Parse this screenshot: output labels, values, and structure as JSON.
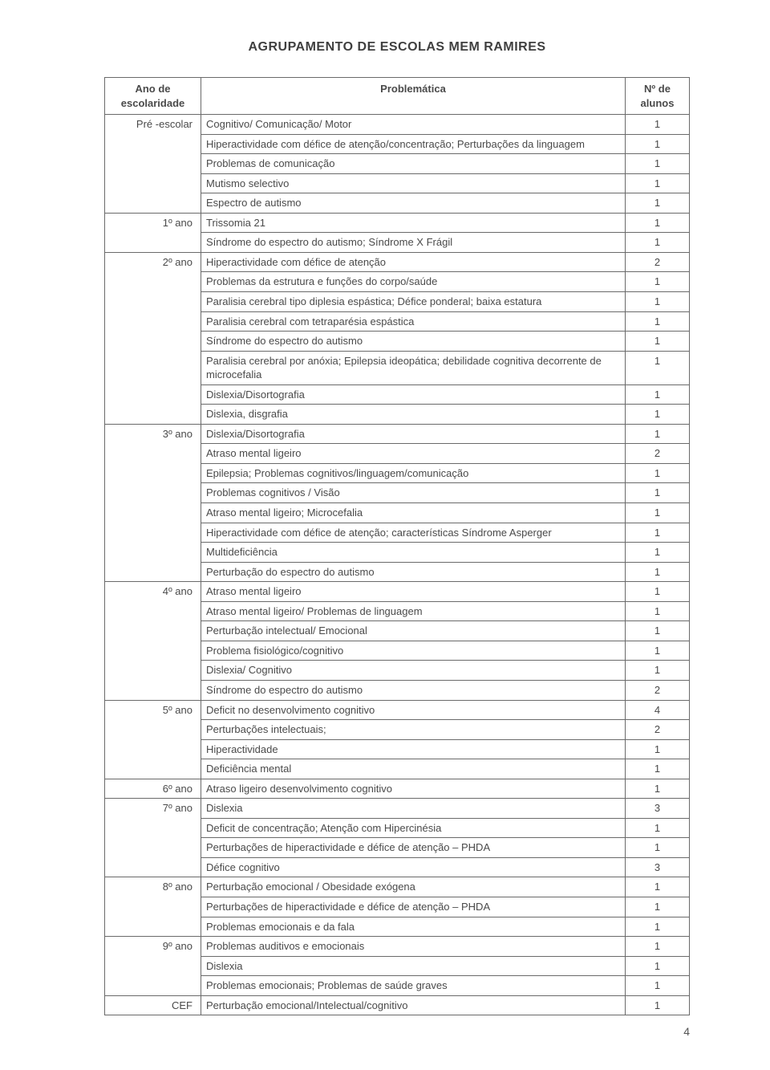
{
  "title": "AGRUPAMENTO DE ESCOLAS MEM RAMIRES",
  "columns": {
    "year": "Ano de escolaridade",
    "problem": "Problemática",
    "count": "Nº de alunos"
  },
  "groups": [
    {
      "year": "Pré -escolar",
      "rows": [
        {
          "problem": "Cognitivo/ Comunicação/ Motor",
          "count": "1"
        },
        {
          "problem": "Hiperactividade com défice de atenção/concentração; Perturbações da linguagem",
          "count": "1"
        },
        {
          "problem": "Problemas de comunicação",
          "count": "1"
        },
        {
          "problem": "Mutismo selectivo",
          "count": "1"
        },
        {
          "problem": "Espectro de autismo",
          "count": "1"
        }
      ]
    },
    {
      "year": "1º ano",
      "rows": [
        {
          "problem": "Trissomia 21",
          "count": "1"
        },
        {
          "problem": "Síndrome do espectro do autismo; Síndrome X Frágil",
          "count": "1"
        }
      ]
    },
    {
      "year": "2º ano",
      "rows": [
        {
          "problem": "Hiperactividade com défice de atenção",
          "count": "2"
        },
        {
          "problem": "Problemas da estrutura e funções do corpo/saúde",
          "count": "1"
        },
        {
          "problem": "Paralisia cerebral tipo diplesia espástica; Défice ponderal; baixa estatura",
          "count": "1"
        },
        {
          "problem": "Paralisia cerebral com tetraparésia espástica",
          "count": "1"
        },
        {
          "problem": "Síndrome do espectro do autismo",
          "count": "1"
        },
        {
          "problem": "Paralisia cerebral por anóxia; Epilepsia ideopática; debilidade cognitiva decorrente de microcefalia",
          "count": "1"
        },
        {
          "problem": "Dislexia/Disortografia",
          "count": "1"
        },
        {
          "problem": "Dislexia, disgrafia",
          "count": "1"
        }
      ]
    },
    {
      "year": "3º ano",
      "rows": [
        {
          "problem": "Dislexia/Disortografia",
          "count": "1"
        },
        {
          "problem": "Atraso mental ligeiro",
          "count": "2"
        },
        {
          "problem": "Epilepsia; Problemas cognitivos/linguagem/comunicação",
          "count": "1"
        },
        {
          "problem": "Problemas cognitivos / Visão",
          "count": "1"
        },
        {
          "problem": "Atraso mental ligeiro; Microcefalia",
          "count": "1"
        },
        {
          "problem": "Hiperactividade com défice de atenção; características Síndrome Asperger",
          "count": "1"
        },
        {
          "problem": "Multideficiência",
          "count": "1"
        },
        {
          "problem": "Perturbação do espectro do autismo",
          "count": "1"
        }
      ]
    },
    {
      "year": "4º ano",
      "rows": [
        {
          "problem": "Atraso mental ligeiro",
          "count": "1"
        },
        {
          "problem": "Atraso mental ligeiro/ Problemas de linguagem",
          "count": "1"
        },
        {
          "problem": "Perturbação intelectual/ Emocional",
          "count": "1"
        },
        {
          "problem": "Problema fisiológico/cognitivo",
          "count": "1"
        },
        {
          "problem": "Dislexia/ Cognitivo",
          "count": "1"
        },
        {
          "problem": "Síndrome do espectro do autismo",
          "count": "2"
        }
      ]
    },
    {
      "year": "5º ano",
      "rows": [
        {
          "problem": "Deficit no desenvolvimento cognitivo",
          "count": "4"
        },
        {
          "problem": "Perturbações intelectuais;",
          "count": "2"
        },
        {
          "problem": "Hiperactividade",
          "count": "1"
        },
        {
          "problem": "Deficiência mental",
          "count": "1"
        }
      ]
    },
    {
      "year": "6º ano",
      "rows": [
        {
          "problem": "Atraso ligeiro desenvolvimento cognitivo",
          "count": "1"
        }
      ]
    },
    {
      "year": "7º ano",
      "rows": [
        {
          "problem": "Dislexia",
          "count": "3"
        },
        {
          "problem": "Deficit de concentração; Atenção com Hipercinésia",
          "count": "1"
        },
        {
          "problem": "Perturbações de hiperactividade e défice de atenção – PHDA",
          "count": "1"
        },
        {
          "problem": "Défice cognitivo",
          "count": "3"
        }
      ]
    },
    {
      "year": "8º ano",
      "rows": [
        {
          "problem": "Perturbação emocional / Obesidade exógena",
          "count": "1"
        },
        {
          "problem": "Perturbações de hiperactividade e défice de atenção – PHDA",
          "count": "1"
        },
        {
          "problem": "Problemas emocionais e da fala",
          "count": "1"
        }
      ]
    },
    {
      "year": "9º ano",
      "rows": [
        {
          "problem": "Problemas auditivos e emocionais",
          "count": "1"
        },
        {
          "problem": "Dislexia",
          "count": "1"
        },
        {
          "problem": "Problemas emocionais; Problemas de saúde graves",
          "count": "1"
        }
      ]
    },
    {
      "year": "CEF",
      "rows": [
        {
          "problem": "Perturbação emocional/Intelectual/cognitivo",
          "count": "1"
        }
      ]
    }
  ],
  "pageNumber": "4",
  "style": {
    "border_color": "#6a6a6a",
    "text_color": "#4a4a4a",
    "header_fontsize": 13,
    "body_fontsize": 13
  }
}
